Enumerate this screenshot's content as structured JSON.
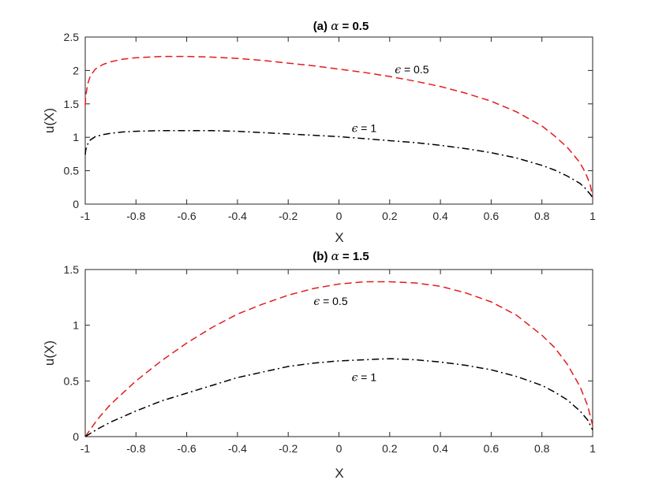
{
  "chart_data": [
    {
      "type": "line",
      "title_prefix": "(a)",
      "title_symbol": "α",
      "title_suffix": "= 0.5",
      "xlabel": "X",
      "ylabel": "u(X)",
      "xlim": [
        -1,
        1
      ],
      "ylim": [
        0,
        2.5
      ],
      "xticks": [
        -1,
        -0.8,
        -0.6,
        -0.4,
        -0.2,
        0,
        0.2,
        0.4,
        0.6,
        0.8,
        1
      ],
      "xtick_labels": [
        "-1",
        "-0.8",
        "-0.6",
        "-0.4",
        "-0.2",
        "0",
        "0.2",
        "0.4",
        "0.6",
        "0.8",
        "1"
      ],
      "yticks": [
        0,
        0.5,
        1,
        1.5,
        2,
        2.5
      ],
      "ytick_labels": [
        "0",
        "0.5",
        "1",
        "1.5",
        "2",
        "2.5"
      ],
      "series": [
        {
          "style": "dashed",
          "color": "#e41a1c",
          "x": [
            -1.0,
            -0.998,
            -0.99,
            -0.98,
            -0.96,
            -0.93,
            -0.9,
            -0.85,
            -0.8,
            -0.7,
            -0.6,
            -0.5,
            -0.4,
            -0.3,
            -0.2,
            -0.1,
            0.0,
            0.1,
            0.2,
            0.3,
            0.4,
            0.5,
            0.6,
            0.7,
            0.8,
            0.85,
            0.9,
            0.95,
            0.97,
            0.99,
            1.0
          ],
          "y": [
            1.48,
            1.62,
            1.8,
            1.92,
            2.02,
            2.09,
            2.13,
            2.17,
            2.19,
            2.21,
            2.21,
            2.2,
            2.18,
            2.15,
            2.11,
            2.07,
            2.02,
            1.97,
            1.91,
            1.84,
            1.76,
            1.66,
            1.54,
            1.38,
            1.17,
            1.02,
            0.85,
            0.62,
            0.48,
            0.3,
            0.1
          ]
        },
        {
          "style": "dashdot",
          "color": "#000000",
          "x": [
            -1.0,
            -0.998,
            -0.99,
            -0.98,
            -0.96,
            -0.93,
            -0.9,
            -0.85,
            -0.8,
            -0.7,
            -0.6,
            -0.5,
            -0.4,
            -0.3,
            -0.2,
            -0.1,
            0.0,
            0.1,
            0.2,
            0.3,
            0.4,
            0.5,
            0.6,
            0.7,
            0.8,
            0.85,
            0.9,
            0.95,
            0.97,
            0.99,
            1.0
          ],
          "y": [
            0.74,
            0.81,
            0.9,
            0.96,
            1.01,
            1.04,
            1.06,
            1.08,
            1.09,
            1.1,
            1.1,
            1.1,
            1.09,
            1.07,
            1.05,
            1.03,
            1.01,
            0.98,
            0.95,
            0.92,
            0.88,
            0.83,
            0.77,
            0.69,
            0.58,
            0.51,
            0.42,
            0.31,
            0.24,
            0.15,
            0.1
          ]
        }
      ],
      "annotations": [
        {
          "symbol": "ϵ",
          "text": "= 0.5",
          "x": 0.22,
          "y": 1.96
        },
        {
          "symbol": "ϵ",
          "text": "= 1",
          "x": 0.05,
          "y": 1.08
        }
      ]
    },
    {
      "type": "line",
      "title_prefix": "(b)",
      "title_symbol": "α",
      "title_suffix": "= 1.5",
      "xlabel": "X",
      "ylabel": "u(X)",
      "xlim": [
        -1,
        1
      ],
      "ylim": [
        0,
        1.5
      ],
      "xticks": [
        -1,
        -0.8,
        -0.6,
        -0.4,
        -0.2,
        0,
        0.2,
        0.4,
        0.6,
        0.8,
        1
      ],
      "xtick_labels": [
        "-1",
        "-0.8",
        "-0.6",
        "-0.4",
        "-0.2",
        "0",
        "0.2",
        "0.4",
        "0.6",
        "0.8",
        "1"
      ],
      "yticks": [
        0,
        0.5,
        1,
        1.5
      ],
      "ytick_labels": [
        "0",
        "0.5",
        "1",
        "1.5"
      ],
      "series": [
        {
          "style": "dashed",
          "color": "#e41a1c",
          "x": [
            -1.0,
            -0.95,
            -0.9,
            -0.8,
            -0.7,
            -0.6,
            -0.5,
            -0.4,
            -0.3,
            -0.2,
            -0.1,
            0.0,
            0.1,
            0.2,
            0.3,
            0.4,
            0.5,
            0.6,
            0.7,
            0.8,
            0.85,
            0.9,
            0.95,
            0.98,
            1.0
          ],
          "y": [
            0.0,
            0.16,
            0.29,
            0.5,
            0.68,
            0.84,
            0.98,
            1.1,
            1.19,
            1.27,
            1.33,
            1.37,
            1.39,
            1.39,
            1.38,
            1.35,
            1.29,
            1.21,
            1.09,
            0.91,
            0.8,
            0.65,
            0.45,
            0.28,
            0.1
          ]
        },
        {
          "style": "dashdot",
          "color": "#000000",
          "x": [
            -1.0,
            -0.95,
            -0.9,
            -0.8,
            -0.7,
            -0.6,
            -0.5,
            -0.4,
            -0.3,
            -0.2,
            -0.1,
            0.0,
            0.1,
            0.2,
            0.3,
            0.4,
            0.5,
            0.6,
            0.7,
            0.8,
            0.85,
            0.9,
            0.95,
            0.98,
            1.0
          ],
          "y": [
            0.0,
            0.07,
            0.13,
            0.23,
            0.32,
            0.39,
            0.46,
            0.53,
            0.58,
            0.63,
            0.66,
            0.68,
            0.69,
            0.7,
            0.69,
            0.67,
            0.64,
            0.6,
            0.54,
            0.46,
            0.4,
            0.33,
            0.23,
            0.15,
            0.06
          ]
        }
      ],
      "annotations": [
        {
          "symbol": "ϵ",
          "text": "= 0.5",
          "x": -0.1,
          "y": 1.18
        },
        {
          "symbol": "ϵ",
          "text": "= 1",
          "x": 0.05,
          "y": 0.5
        }
      ]
    }
  ]
}
